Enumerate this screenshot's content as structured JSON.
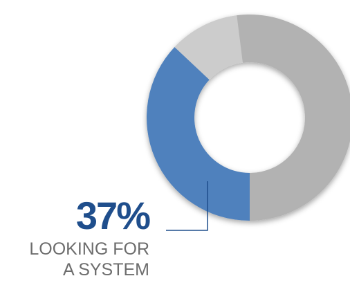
{
  "chart_data": {
    "type": "pie",
    "style": "donut",
    "slices": [
      {
        "value": 37,
        "color": "#4f81bd"
      },
      {
        "value": 11,
        "color": "#cccccc"
      },
      {
        "value": 52,
        "color": "#b2b2b2"
      }
    ],
    "callout": {
      "value_text": "37%",
      "label_lines": [
        "LOOKING FOR",
        "A SYSTEM"
      ],
      "value_color": "#1f4e8c",
      "label_color": "#6d6d6d",
      "line_color": "#1f4e8c"
    }
  }
}
